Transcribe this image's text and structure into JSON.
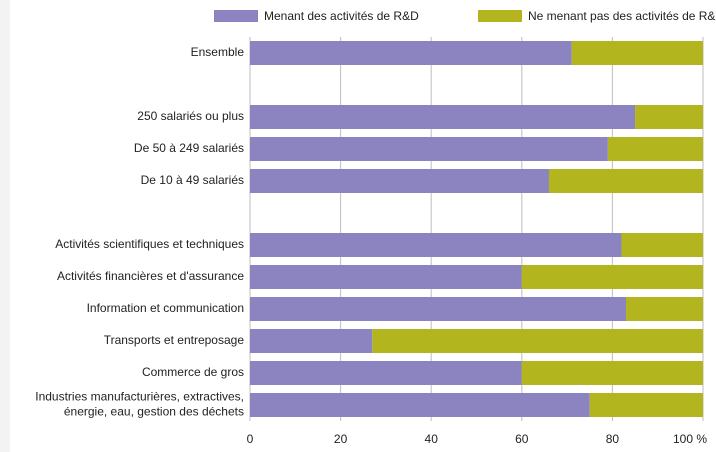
{
  "chart_data": {
    "type": "stacked_barh",
    "categories": [
      "Ensemble",
      null,
      "250 salariés ou plus",
      "De 50 à 249 salariés",
      "De 10 à 49 salariés",
      null,
      "Activités scientifiques et techniques",
      "Activités financières et d'assurance",
      "Information et communication",
      "Transports et entreposage",
      "Commerce de gros",
      [
        "Industries manufacturières, extractives,",
        "énergie, eau, gestion des déchets"
      ]
    ],
    "series": [
      {
        "name": "Menant des activités de R&D",
        "color": "#8b84c1",
        "values": [
          71,
          null,
          85,
          79,
          66,
          null,
          82,
          60,
          83,
          27,
          60,
          75
        ]
      },
      {
        "name": "Ne menant pas des activités de R&D",
        "color": "#b3b51e",
        "values": [
          29,
          null,
          15,
          21,
          34,
          null,
          18,
          40,
          17,
          73,
          40,
          25
        ]
      }
    ],
    "xlim": [
      0,
      100
    ],
    "xticks": [
      0,
      20,
      40,
      60,
      80,
      {
        "value": 100,
        "label": "100 %"
      }
    ],
    "grid": true,
    "legend": "top"
  }
}
